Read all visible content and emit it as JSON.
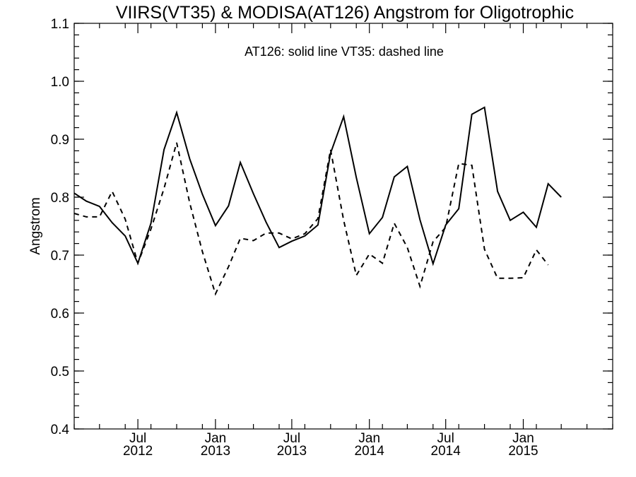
{
  "chart_data": {
    "type": "line",
    "title": "VIIRS(VT35) & MODISA(AT126)  Angstrom for Oligotrophic",
    "annotation": "AT126: solid line   VT35: dashed line",
    "xlabel": "",
    "ylabel": "Angstrom",
    "ylim": [
      0.4,
      1.1
    ],
    "xlim": [
      "2012-02-01",
      "2015-08-01"
    ],
    "y_ticks": [
      "0.4",
      "0.5",
      "0.6",
      "0.7",
      "0.8",
      "0.9",
      "1.0",
      "1.1"
    ],
    "x_ticks": [
      {
        "date": "2012-07-01",
        "month": "Jul",
        "year": "2012"
      },
      {
        "date": "2013-01-01",
        "month": "Jan",
        "year": "2013"
      },
      {
        "date": "2013-07-01",
        "month": "Jul",
        "year": "2013"
      },
      {
        "date": "2014-01-01",
        "month": "Jan",
        "year": "2014"
      },
      {
        "date": "2014-07-01",
        "month": "Jul",
        "year": "2014"
      },
      {
        "date": "2015-01-01",
        "month": "Jan",
        "year": "2015"
      }
    ],
    "grid": false,
    "series": [
      {
        "name": "AT126",
        "style": "solid",
        "points": [
          [
            "2012-02-01",
            0.807
          ],
          [
            "2012-03-01",
            0.793
          ],
          [
            "2012-04-01",
            0.784
          ],
          [
            "2012-05-01",
            0.756
          ],
          [
            "2012-06-01",
            0.733
          ],
          [
            "2012-07-01",
            0.686
          ],
          [
            "2012-08-01",
            0.755
          ],
          [
            "2012-09-01",
            0.882
          ],
          [
            "2012-10-01",
            0.946
          ],
          [
            "2012-11-01",
            0.866
          ],
          [
            "2012-12-01",
            0.805
          ],
          [
            "2013-01-01",
            0.751
          ],
          [
            "2013-02-01",
            0.785
          ],
          [
            "2013-03-01",
            0.86
          ],
          [
            "2013-04-01",
            0.806
          ],
          [
            "2013-05-01",
            0.757
          ],
          [
            "2013-06-01",
            0.713
          ],
          [
            "2013-07-01",
            0.724
          ],
          [
            "2013-08-01",
            0.733
          ],
          [
            "2013-09-01",
            0.752
          ],
          [
            "2013-10-01",
            0.876
          ],
          [
            "2013-11-01",
            0.939
          ],
          [
            "2013-12-01",
            0.834
          ],
          [
            "2014-01-01",
            0.737
          ],
          [
            "2014-02-01",
            0.765
          ],
          [
            "2014-03-01",
            0.835
          ],
          [
            "2014-04-01",
            0.853
          ],
          [
            "2014-05-01",
            0.761
          ],
          [
            "2014-06-01",
            0.685
          ],
          [
            "2014-07-01",
            0.752
          ],
          [
            "2014-08-01",
            0.78
          ],
          [
            "2014-09-01",
            0.943
          ],
          [
            "2014-10-01",
            0.955
          ],
          [
            "2014-11-01",
            0.81
          ],
          [
            "2014-12-01",
            0.76
          ],
          [
            "2015-01-01",
            0.774
          ],
          [
            "2015-02-01",
            0.748
          ],
          [
            "2015-03-01",
            0.823
          ],
          [
            "2015-04-01",
            0.8
          ]
        ]
      },
      {
        "name": "VT35",
        "style": "dashed",
        "points": [
          [
            "2012-02-01",
            0.772
          ],
          [
            "2012-03-01",
            0.766
          ],
          [
            "2012-04-01",
            0.766
          ],
          [
            "2012-05-01",
            0.81
          ],
          [
            "2012-06-01",
            0.762
          ],
          [
            "2012-07-01",
            0.686
          ],
          [
            "2012-08-01",
            0.745
          ],
          [
            "2012-09-01",
            0.815
          ],
          [
            "2012-10-01",
            0.894
          ],
          [
            "2012-11-01",
            0.79
          ],
          [
            "2012-12-01",
            0.706
          ],
          [
            "2013-01-01",
            0.633
          ],
          [
            "2013-02-01",
            0.68
          ],
          [
            "2013-03-01",
            0.729
          ],
          [
            "2013-04-01",
            0.725
          ],
          [
            "2013-05-01",
            0.738
          ],
          [
            "2013-06-01",
            0.738
          ],
          [
            "2013-07-01",
            0.728
          ],
          [
            "2013-08-01",
            0.737
          ],
          [
            "2013-09-01",
            0.763
          ],
          [
            "2013-10-01",
            0.882
          ],
          [
            "2013-11-01",
            0.76
          ],
          [
            "2013-12-01",
            0.665
          ],
          [
            "2014-01-01",
            0.702
          ],
          [
            "2014-02-01",
            0.686
          ],
          [
            "2014-03-01",
            0.755
          ],
          [
            "2014-04-01",
            0.713
          ],
          [
            "2014-05-01",
            0.646
          ],
          [
            "2014-06-01",
            0.723
          ],
          [
            "2014-07-01",
            0.748
          ],
          [
            "2014-08-01",
            0.858
          ],
          [
            "2014-09-01",
            0.855
          ],
          [
            "2014-10-01",
            0.71
          ],
          [
            "2014-11-01",
            0.66
          ],
          [
            "2014-12-01",
            0.66
          ],
          [
            "2015-01-01",
            0.661
          ],
          [
            "2015-02-01",
            0.709
          ],
          [
            "2015-03-01",
            0.683
          ]
        ]
      }
    ]
  }
}
